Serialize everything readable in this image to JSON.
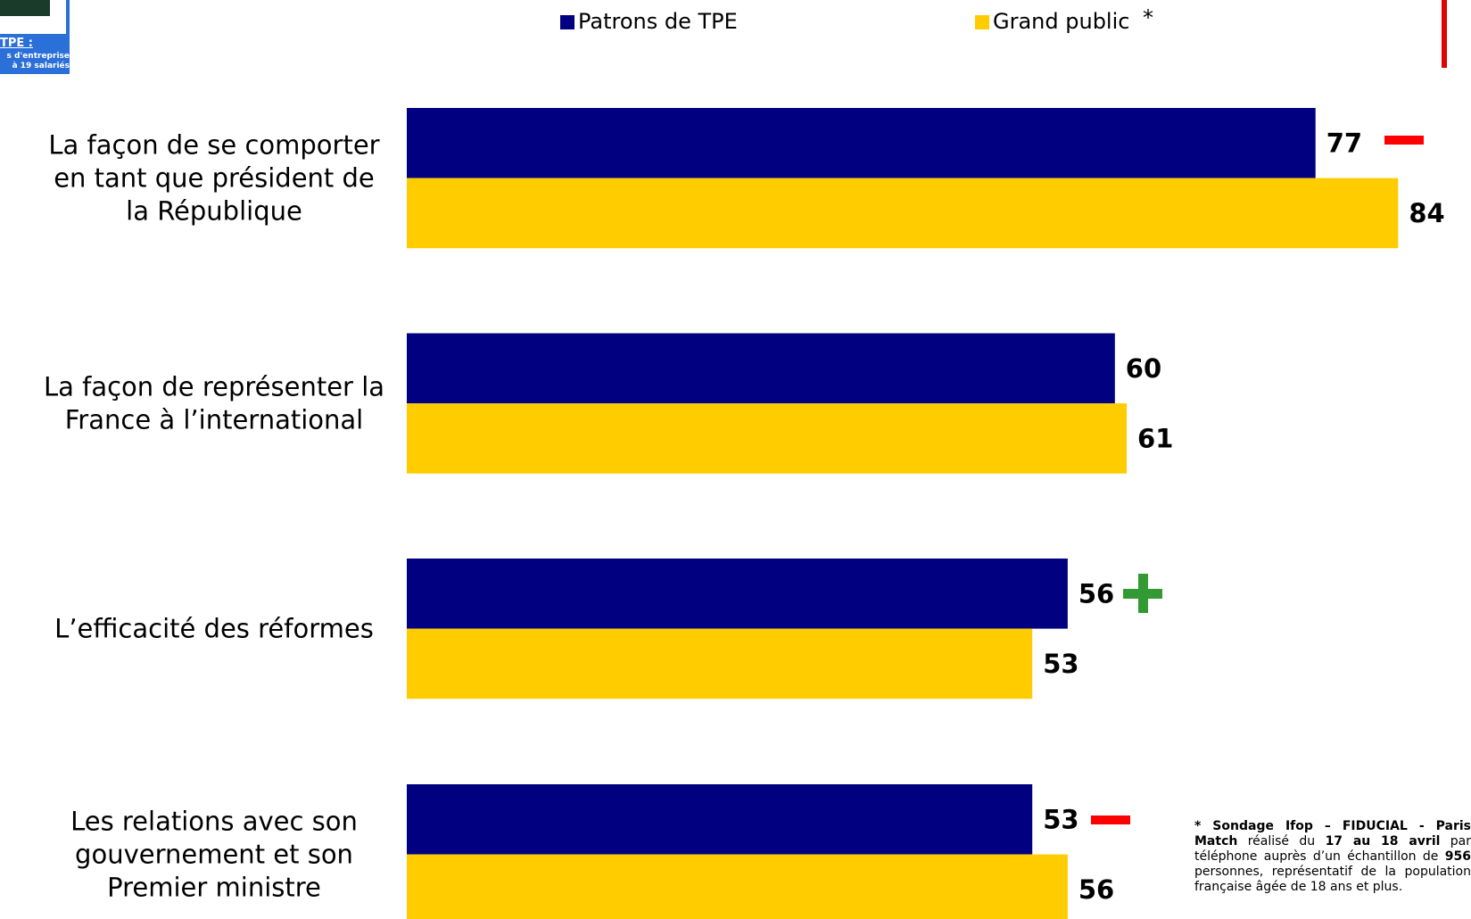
{
  "logo": {
    "title": "TPE :",
    "lines": [
      "s d'entreprise",
      "à 19 salariés"
    ]
  },
  "chart_data": {
    "type": "bar",
    "orientation": "horizontal",
    "categories": [
      "La façon de se comporter\nen tant que président de\nla République",
      "La façon de représenter la\nFrance à l’international",
      "L’efficacité des réformes",
      "Les relations avec son\ngouvernement et son\nPremier ministre"
    ],
    "series": [
      {
        "name": "Patrons de TPE",
        "color": "#000080",
        "values": [
          77,
          60,
          56,
          53
        ]
      },
      {
        "name": "Grand public",
        "color": "#ffcc00",
        "values": [
          84,
          61,
          53,
          56
        ]
      }
    ],
    "legend_note": "*",
    "footnote": [
      "* Sondage Ifop – FIDUCIAL - Paris Match",
      " réalisé du ",
      "17 au 18 avril",
      " par téléphone auprès d’un échantillon de ",
      "956",
      " personnes, représentatif de la population française âgée de 18 ans et plus."
    ]
  }
}
